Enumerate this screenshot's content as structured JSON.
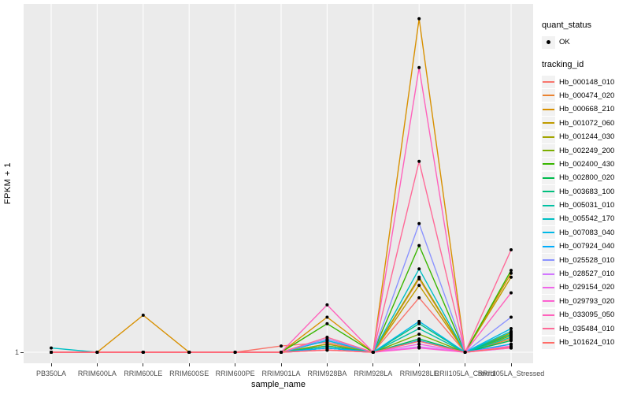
{
  "figure": {
    "y_axis_title": "FPKM + 1",
    "x_axis_title": "sample_name",
    "y_tick_label": "1"
  },
  "legend": {
    "quant_status_title": "quant_status",
    "quant_status_items": [
      {
        "label": "OK",
        "marker": "black-point"
      }
    ],
    "tracking_id_title": "tracking_id"
  },
  "chart_data": {
    "type": "line",
    "title": "",
    "xlabel": "sample_name",
    "ylabel": "FPKM + 1",
    "y_scale": "log10",
    "y_tick_labels": [
      "1"
    ],
    "grid": "white major gridlines on gray panel",
    "legend_position": "right",
    "panel_bg": "#EBEBEB",
    "gridline_color": "#FFFFFF",
    "point_color": "#000000",
    "categories": [
      "PB350LA",
      "RRIM600LA",
      "RRIM600LE",
      "RRIM600SE",
      "RRIM600PE",
      "RRIM901LA",
      "RRIM928BA",
      "RRIM928LA",
      "RRIM928LE",
      "RRII105LA_Control",
      "RRII105LA_Stressed"
    ],
    "series": [
      {
        "name": "Hb_000148_010",
        "color": "#F8766D",
        "values": [
          1,
          1,
          1,
          1,
          1,
          1.15,
          1.25,
          1,
          3.4,
          1,
          1.2
        ]
      },
      {
        "name": "Hb_000474_020",
        "color": "#EA8331",
        "values": [
          1,
          1,
          1,
          1,
          1,
          1,
          1.2,
          1,
          5.2,
          1,
          1.35
        ]
      },
      {
        "name": "Hb_000668_210",
        "color": "#D89000",
        "values": [
          1,
          1,
          2.3,
          1,
          1,
          1,
          2.2,
          1,
          1800,
          1,
          5.9
        ]
      },
      {
        "name": "Hb_001072_060",
        "color": "#C09B00",
        "values": [
          1,
          1,
          1,
          1,
          1,
          1,
          1.15,
          1,
          4.5,
          1,
          5.4
        ]
      },
      {
        "name": "Hb_001244_030",
        "color": "#A3A500",
        "values": [
          1,
          1,
          1,
          1,
          1,
          1,
          1.2,
          1,
          5.4,
          1,
          1.55
        ]
      },
      {
        "name": "Hb_002249_200",
        "color": "#7CAE00",
        "values": [
          1,
          1,
          1,
          1,
          1,
          1,
          1.1,
          1,
          1.5,
          1,
          1.45
        ]
      },
      {
        "name": "Hb_002400_430",
        "color": "#39B600",
        "values": [
          1,
          1,
          1,
          1,
          1,
          1,
          1.9,
          1,
          11,
          1,
          6.3
        ]
      },
      {
        "name": "Hb_002800_020",
        "color": "#00BB4E",
        "values": [
          1,
          1,
          1,
          1,
          1,
          1,
          1.1,
          1,
          1.35,
          1,
          1.3
        ]
      },
      {
        "name": "Hb_003683_100",
        "color": "#00BF7D",
        "values": [
          1,
          1,
          1,
          1,
          1,
          1,
          1.15,
          1,
          1.9,
          1,
          1.5
        ]
      },
      {
        "name": "Hb_005031_010",
        "color": "#00C1A3",
        "values": [
          1,
          1,
          1,
          1,
          1,
          1,
          1.1,
          1,
          1.7,
          1,
          1.4
        ]
      },
      {
        "name": "Hb_005542_170",
        "color": "#00BFC4",
        "values": [
          1.1,
          1,
          1,
          1,
          1,
          1,
          1.3,
          1,
          6.5,
          1,
          1.6
        ]
      },
      {
        "name": "Hb_007083_040",
        "color": "#00B8E7",
        "values": [
          1,
          1,
          1,
          1,
          1,
          1,
          1.3,
          1,
          2.0,
          1,
          1.7
        ]
      },
      {
        "name": "Hb_007924_040",
        "color": "#00ACFC",
        "values": [
          1,
          1,
          1,
          1,
          1,
          1,
          1.1,
          1,
          1.3,
          1,
          1.2
        ]
      },
      {
        "name": "Hb_025528_010",
        "color": "#8B93FF",
        "values": [
          1,
          1,
          1,
          1,
          1,
          1,
          1.35,
          1,
          18,
          1,
          2.2
        ]
      },
      {
        "name": "Hb_028527_010",
        "color": "#D277FF",
        "values": [
          1,
          1,
          1,
          1,
          1,
          1,
          1.05,
          1,
          1.13,
          1,
          1.1
        ]
      },
      {
        "name": "Hb_029154_020",
        "color": "#F066EA",
        "values": [
          1,
          1,
          1,
          1,
          1,
          1,
          1.05,
          1,
          1.2,
          1,
          1.15
        ]
      },
      {
        "name": "Hb_029793_020",
        "color": "#FD61D1",
        "values": [
          1,
          1,
          1,
          1,
          1,
          1,
          1.05,
          1,
          1.1,
          1,
          1.1
        ]
      },
      {
        "name": "Hb_033095_050",
        "color": "#FF62BC",
        "values": [
          1,
          1,
          1,
          1,
          1,
          1,
          2.9,
          1,
          600,
          1,
          3.8
        ]
      },
      {
        "name": "Hb_035484_010",
        "color": "#FF6A98",
        "values": [
          1,
          1,
          1,
          1,
          1,
          1,
          1.4,
          1,
          73,
          1,
          10
        ]
      },
      {
        "name": "Hb_101624_010",
        "color": "#FF6C67",
        "values": [
          1,
          1,
          1,
          1,
          1,
          1,
          1.05,
          1,
          1.28,
          1,
          1.12
        ]
      }
    ]
  }
}
